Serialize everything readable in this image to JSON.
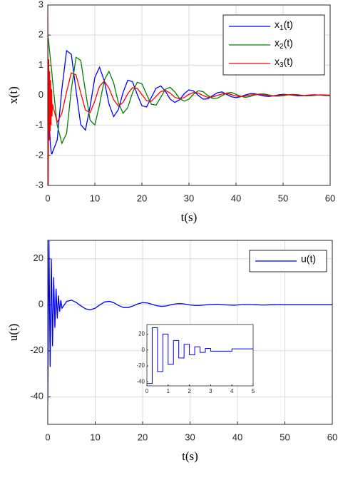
{
  "chart_data": [
    {
      "type": "line",
      "xlabel": "t(s)",
      "ylabel": "x(t)",
      "x": [
        0,
        0.1,
        0.2,
        0.3,
        0.4,
        0.5,
        0.6,
        0.7,
        0.8,
        0.9,
        1,
        2,
        3,
        4,
        5,
        6,
        7,
        8,
        9,
        10,
        11,
        12,
        13,
        14,
        15,
        16,
        17,
        18,
        19,
        20,
        21,
        22,
        23,
        24,
        25,
        26,
        27,
        28,
        29,
        30,
        31,
        32,
        33,
        34,
        35,
        36,
        37,
        38,
        39,
        40,
        41,
        42,
        43,
        44,
        45,
        46,
        47,
        48,
        49,
        50,
        51,
        52,
        53,
        54,
        55,
        56,
        57,
        58,
        59,
        60
      ],
      "series": [
        {
          "name": "x1(t)",
          "color": "#0000ff",
          "values": [
            0,
            -0.3,
            -0.6,
            -0.9,
            -1.2,
            -1.5,
            -1.7,
            -1.85,
            -1.95,
            -1.95,
            -1.9,
            -1.49,
            0.21,
            1.48,
            1.36,
            0.16,
            -0.98,
            -1.16,
            -0.37,
            0.59,
            0.93,
            0.48,
            -0.29,
            -0.71,
            -0.48,
            0.09,
            0.5,
            0.45,
            0.03,
            -0.35,
            -0.39,
            -0.08,
            0.23,
            0.31,
            0.13,
            -0.13,
            -0.24,
            -0.15,
            0.05,
            0.18,
            0.14,
            -0.01,
            -0.13,
            -0.12,
            -0.02,
            0.08,
            0.11,
            0.03,
            -0.05,
            -0.08,
            -0.05,
            0.01,
            0.05,
            0.05,
            0.01,
            -0.03,
            -0.04,
            -0.02,
            0.01,
            0.03,
            0.02,
            0,
            -0.02,
            -0.02,
            0,
            0.01,
            0.01,
            0,
            -0.01,
            -0.01
          ]
        },
        {
          "name": "x2(t)",
          "color": "#008000",
          "values": [
            2,
            1.9,
            1.75,
            1.6,
            1.45,
            1.3,
            1.15,
            1.0,
            0.85,
            0.7,
            0.5,
            -1.0,
            -1.6,
            -1.27,
            0.18,
            1.26,
            1.16,
            0.14,
            -0.83,
            -0.99,
            -0.31,
            0.5,
            0.79,
            0.41,
            -0.25,
            -0.6,
            -0.41,
            0.08,
            0.43,
            0.38,
            0.03,
            -0.3,
            -0.33,
            -0.07,
            0.2,
            0.26,
            0.11,
            -0.11,
            -0.2,
            -0.13,
            0.04,
            0.15,
            0.12,
            -0.01,
            -0.11,
            -0.1,
            -0.02,
            0.07,
            0.09,
            0.03,
            -0.04,
            -0.07,
            -0.04,
            0.01,
            0.04,
            0.04,
            0.01,
            -0.03,
            -0.03,
            -0.02,
            0.01,
            0.03,
            0.02,
            0,
            -0.02,
            -0.02,
            0,
            0.01,
            0.01,
            0
          ]
        },
        {
          "name": "x3(t)",
          "color": "#ff0000",
          "values": [
            3,
            -3,
            1.2,
            -1.5,
            0.8,
            -1.2,
            0.5,
            -1.0,
            0.2,
            -0.7,
            -0.3,
            -0.9,
            -0.6,
            0.11,
            0.74,
            0.68,
            0.08,
            -0.49,
            -0.58,
            -0.19,
            0.3,
            0.47,
            0.24,
            -0.15,
            -0.36,
            -0.24,
            0.05,
            0.25,
            0.23,
            0.02,
            -0.18,
            -0.2,
            -0.04,
            0.12,
            0.16,
            0.07,
            -0.07,
            -0.12,
            -0.08,
            0.03,
            0.09,
            0.07,
            -0.01,
            -0.07,
            -0.06,
            -0.01,
            0.04,
            0.06,
            0.02,
            -0.03,
            -0.04,
            -0.03,
            0.01,
            0.03,
            0.03,
            0.01,
            -0.02,
            -0.02,
            -0.01,
            0.01,
            0.02,
            0.01,
            0,
            -0.01,
            -0.01,
            0,
            0,
            0.01,
            0,
            0
          ]
        }
      ],
      "xlim": [
        0,
        60
      ],
      "xticks": [
        0,
        10,
        20,
        30,
        40,
        50,
        60
      ],
      "ylim": [
        -3,
        3
      ],
      "yticks": [
        -3,
        -2,
        -1,
        0,
        1,
        2,
        3
      ],
      "grid": true,
      "legend": "upper right"
    },
    {
      "type": "line",
      "xlabel": "t(s)",
      "ylabel": "u(t)",
      "x": [
        0,
        0.25,
        0.5,
        0.75,
        1,
        1.25,
        1.5,
        1.75,
        2,
        2.25,
        2.5,
        2.75,
        3,
        4,
        5,
        6,
        7,
        8,
        9,
        10,
        11,
        12,
        13,
        14,
        15,
        16,
        17,
        18,
        19,
        20,
        21,
        22,
        23,
        24,
        25,
        26,
        27,
        28,
        29,
        30,
        31,
        32,
        33,
        34,
        35,
        36,
        37,
        38,
        39,
        40,
        41,
        42,
        43,
        44,
        45,
        46,
        47,
        48,
        49,
        50,
        51,
        52,
        53,
        54,
        55,
        56,
        57,
        58,
        59,
        60
      ],
      "series": [
        {
          "name": "u(t)",
          "color": "#0000ff",
          "values": [
            -42,
            28,
            -27,
            20,
            -18,
            12,
            -10,
            7,
            -6,
            4,
            -3,
            2,
            -1.5,
            1.5,
            2,
            1,
            -0.5,
            -1.8,
            -2.2,
            -1.5,
            0,
            1.2,
            1.5,
            0.8,
            -0.4,
            -1.2,
            -1.2,
            -0.5,
            0.4,
            0.9,
            0.8,
            0.2,
            -0.4,
            -0.7,
            -0.5,
            0,
            0.4,
            0.5,
            0.3,
            -0.1,
            -0.3,
            -0.3,
            -0.1,
            0.1,
            0.2,
            0.2,
            0,
            -0.1,
            -0.2,
            -0.1,
            0.1,
            0.1,
            0.1,
            0,
            -0.1,
            -0.1,
            0,
            0,
            0.1,
            0,
            0,
            0,
            0,
            0,
            0,
            0,
            0,
            0,
            0,
            0
          ]
        }
      ],
      "xlim": [
        0,
        60
      ],
      "xticks": [
        0,
        10,
        20,
        30,
        40,
        50,
        60
      ],
      "ylim": [
        -52,
        28
      ],
      "yticks": [
        -40,
        -20,
        0,
        20
      ],
      "grid": true,
      "legend": "upper right",
      "inset": {
        "xlim": [
          0,
          5
        ],
        "xticks": [
          0,
          1,
          2,
          3,
          4,
          5
        ],
        "ylim": [
          -45,
          32
        ],
        "yticks": [
          -40,
          -20,
          0,
          20
        ],
        "step": true
      }
    }
  ]
}
